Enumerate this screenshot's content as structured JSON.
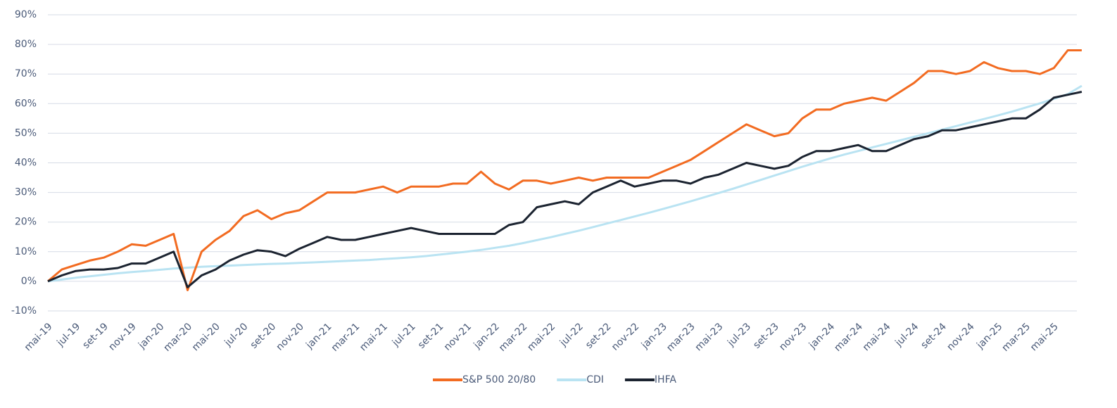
{
  "chart_data": {
    "type": "line",
    "categories": [
      "mai-19",
      null,
      "jul-19",
      null,
      "set-19",
      null,
      "nov-19",
      null,
      "jan-20",
      null,
      "mar-20",
      null,
      "mai-20",
      null,
      "jul-20",
      null,
      "set-20",
      null,
      "nov-20",
      null,
      "jan-21",
      null,
      "mar-21",
      null,
      "mai-21",
      null,
      "jul-21",
      null,
      "set-21",
      null,
      "nov-21",
      null,
      "jan-22",
      null,
      "mar-22",
      null,
      "mai-22",
      null,
      "jul-22",
      null,
      "set-22",
      null,
      "nov-22",
      null,
      "jan-23",
      null,
      "mar-23",
      null,
      "mai-23",
      null,
      "jul-23",
      null,
      "set-23",
      null,
      "nov-23",
      null,
      "jan-24",
      null,
      "mar-24",
      null,
      "mai-24",
      null,
      "jul-24",
      null,
      "set-24",
      null,
      "nov-24",
      null,
      "jan-25",
      null,
      "mar-25",
      null,
      "mai-25",
      null,
      null
    ],
    "series": [
      {
        "name": "S&P 500 20/80",
        "color": "#f26b21",
        "values": [
          0,
          4,
          5.5,
          7,
          8,
          10,
          12.5,
          12,
          14,
          16,
          -3,
          10,
          14,
          17,
          22,
          24,
          21,
          23,
          24,
          27,
          30,
          30,
          30,
          31,
          32,
          30,
          32,
          32,
          32,
          33,
          33,
          37,
          33,
          31,
          34,
          34,
          33,
          34,
          35,
          34,
          35,
          35,
          35,
          35,
          37,
          39,
          41,
          44,
          47,
          50,
          53,
          51,
          49,
          50,
          55,
          58,
          58,
          60,
          61,
          62,
          61,
          64,
          67,
          71,
          71,
          70,
          71,
          74,
          72,
          71,
          71,
          70,
          72,
          78,
          78
        ]
      },
      {
        "name": "CDI",
        "color": "#b9e3f2",
        "values": [
          0,
          0.6,
          1.2,
          1.7,
          2.2,
          2.7,
          3.1,
          3.5,
          3.9,
          4.3,
          4.6,
          4.9,
          5.1,
          5.3,
          5.5,
          5.7,
          5.9,
          6.0,
          6.2,
          6.4,
          6.6,
          6.8,
          7.0,
          7.2,
          7.5,
          7.8,
          8.1,
          8.5,
          9.0,
          9.5,
          10.0,
          10.6,
          11.3,
          12.0,
          12.9,
          13.9,
          14.9,
          16.0,
          17.1,
          18.3,
          19.5,
          20.7,
          21.9,
          23.1,
          24.4,
          25.7,
          27.0,
          28.4,
          29.8,
          31.2,
          32.7,
          34.2,
          35.7,
          37.2,
          38.7,
          40.1,
          41.5,
          42.8,
          44.0,
          45.2,
          46.4,
          47.6,
          48.8,
          50.0,
          51.2,
          52.4,
          53.6,
          54.8,
          56.0,
          57.3,
          58.7,
          60.1,
          61.6,
          63.2,
          66
        ]
      },
      {
        "name": "IHFA",
        "color": "#1b2330",
        "values": [
          0,
          2,
          3.5,
          4,
          4,
          4.5,
          6,
          6,
          8,
          10,
          -2,
          2,
          4,
          7,
          9,
          10.5,
          10,
          8.5,
          11,
          13,
          15,
          14,
          14,
          15,
          16,
          17,
          18,
          17,
          16,
          16,
          16,
          16,
          16,
          19,
          20,
          25,
          26,
          27,
          26,
          30,
          32,
          34,
          32,
          33,
          34,
          34,
          33,
          35,
          36,
          38,
          40,
          39,
          38,
          39,
          42,
          44,
          44,
          45,
          46,
          44,
          44,
          46,
          48,
          49,
          51,
          51,
          52,
          53,
          54,
          55,
          55,
          58,
          62,
          63,
          64
        ]
      }
    ],
    "ylim": [
      -10,
      90
    ],
    "yticks": [
      {
        "value": -10,
        "label": "-10%"
      },
      {
        "value": 0,
        "label": "0%"
      },
      {
        "value": 10,
        "label": "10%"
      },
      {
        "value": 20,
        "label": "20%"
      },
      {
        "value": 30,
        "label": "30%"
      },
      {
        "value": 40,
        "label": "40%"
      },
      {
        "value": 50,
        "label": "50%"
      },
      {
        "value": 60,
        "label": "60%"
      },
      {
        "value": 70,
        "label": "70%"
      },
      {
        "value": 80,
        "label": "80%"
      },
      {
        "value": 90,
        "label": "90%"
      }
    ],
    "grid": true,
    "legend": "bottom"
  }
}
